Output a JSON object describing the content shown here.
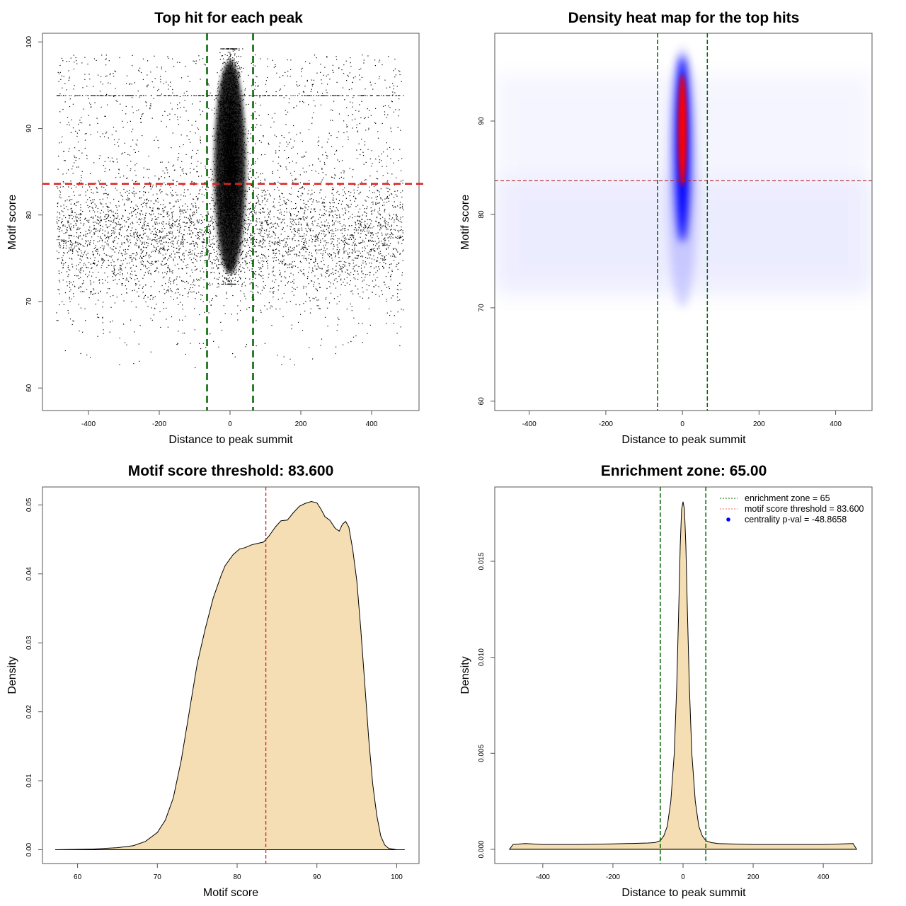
{
  "chart_data": [
    {
      "type": "scatter",
      "title": "Top hit for each peak",
      "xlabel": "Distance to peak summit",
      "ylabel": "Motif score",
      "xlim": [
        -530,
        534
      ],
      "ylim": [
        57.4,
        101
      ],
      "xticks": [
        -400,
        -200,
        0,
        200,
        400
      ],
      "yticks": [
        60,
        70,
        80,
        90,
        100
      ],
      "threshold": 83.6,
      "enrichment_zone": 65,
      "colors": {
        "points": "#000000",
        "threshold": "#dd2222",
        "zone": "#006400"
      },
      "background_points": {
        "count": 5500,
        "x_range": [
          -490,
          490
        ],
        "y_mean": 77.5,
        "y_sd": 3.6,
        "uniform_fraction": 0.3,
        "uniform_range": [
          62,
          98.5
        ]
      },
      "central_points": {
        "count": 5000,
        "x_sd": 15,
        "y_mean": 86,
        "y_sd": 5.5,
        "y_range": [
          72,
          99.2
        ]
      }
    },
    {
      "type": "heatmap",
      "title": "Density heat map for the top hits",
      "xlabel": "Distance to peak summit",
      "ylabel": "Motif score",
      "xlim": [
        -490,
        495
      ],
      "ylim": [
        59,
        99.4
      ],
      "xticks": [
        -400,
        -200,
        0,
        200,
        400
      ],
      "yticks": [
        60,
        70,
        80,
        90
      ],
      "threshold": 83.6,
      "enrichment_zone": 65,
      "hotspot": {
        "x": 0,
        "y_center": 89,
        "y_span": [
          77,
          97
        ]
      },
      "colors": {
        "high": "#ff0000",
        "mid": "#0000ff",
        "threshold": "#b22222",
        "zone": "#006400"
      }
    },
    {
      "type": "area",
      "title": "Motif score threshold: 83.600",
      "xlabel": "Motif score",
      "ylabel": "Density",
      "xlim": [
        55.6,
        102.8
      ],
      "ylim": [
        -0.002,
        0.0526
      ],
      "xticks": [
        60,
        70,
        80,
        90,
        100
      ],
      "yticks": [
        0.0,
        0.01,
        0.02,
        0.03,
        0.04,
        0.05
      ],
      "ytick_labels": [
        "0.00",
        "0.01",
        "0.02",
        "0.03",
        "0.04",
        "0.05"
      ],
      "threshold": 83.6,
      "x": [
        57.2,
        62,
        65,
        67,
        68.5,
        70,
        71,
        72,
        73,
        74,
        75,
        76,
        77,
        78,
        78.5,
        79.5,
        80.3,
        81,
        81.8,
        82.5,
        83.3,
        84,
        84.8,
        85.5,
        86.3,
        87,
        87.8,
        88.5,
        89.3,
        90,
        90.5,
        91,
        91.6,
        92.3,
        92.8,
        93.2,
        93.6,
        94,
        94.5,
        95,
        95.5,
        96,
        96.5,
        97,
        97.5,
        98,
        98.5,
        99,
        99.5,
        100,
        101
      ],
      "y": [
        0,
        0.0001,
        0.0003,
        0.0006,
        0.0012,
        0.0025,
        0.0043,
        0.0075,
        0.013,
        0.02,
        0.027,
        0.032,
        0.0365,
        0.0398,
        0.0412,
        0.0428,
        0.0436,
        0.0438,
        0.0442,
        0.0444,
        0.0446,
        0.0455,
        0.0468,
        0.0477,
        0.0478,
        0.0488,
        0.0498,
        0.0502,
        0.0505,
        0.0503,
        0.0494,
        0.0483,
        0.0478,
        0.0466,
        0.0462,
        0.0472,
        0.0476,
        0.0468,
        0.0435,
        0.039,
        0.032,
        0.024,
        0.016,
        0.0095,
        0.005,
        0.002,
        0.0007,
        0.0002,
        0.0001,
        0,
        0
      ],
      "colors": {
        "fill": "#f5deb3",
        "line": "#000000",
        "threshold": "#cc2222"
      }
    },
    {
      "type": "area",
      "title": "Enrichment zone: 65.00",
      "xlabel": "Distance to peak summit",
      "ylabel": "Density",
      "xlim": [
        -537,
        539
      ],
      "ylim": [
        -0.00074,
        0.01887
      ],
      "xticks": [
        -400,
        -200,
        0,
        200,
        400
      ],
      "yticks": [
        0.0,
        0.005,
        0.01,
        0.015
      ],
      "ytick_labels": [
        "0.000",
        "0.005",
        "0.010",
        "0.015"
      ],
      "enrichment_zone": 65,
      "x": [
        -495,
        -485,
        -450,
        -400,
        -300,
        -200,
        -100,
        -80,
        -65,
        -55,
        -45,
        -35,
        -25,
        -18,
        -12,
        -8,
        -4,
        0,
        4,
        8,
        12,
        18,
        25,
        35,
        45,
        55,
        65,
        80,
        100,
        200,
        300,
        400,
        485,
        495
      ],
      "y": [
        0,
        0.00025,
        0.0003,
        0.00025,
        0.00025,
        0.00028,
        0.00033,
        0.00035,
        0.00045,
        0.0007,
        0.0012,
        0.0025,
        0.005,
        0.0085,
        0.0128,
        0.0158,
        0.0177,
        0.0181,
        0.0177,
        0.0158,
        0.0128,
        0.0085,
        0.005,
        0.0025,
        0.0012,
        0.0007,
        0.00045,
        0.00035,
        0.0003,
        0.00025,
        0.00025,
        0.00025,
        0.0003,
        0
      ],
      "legend": {
        "position": "top-right",
        "entries": [
          {
            "label": "enrichment zone = 65",
            "color": "#006400",
            "style": "dotted"
          },
          {
            "label": "motif score threshold = 83.600",
            "color": "#ff6666",
            "style": "dotted"
          },
          {
            "label": "centrality p-val = -48.8658",
            "color": "#0000ff",
            "style": "point"
          }
        ]
      },
      "colors": {
        "fill": "#f5deb3",
        "line": "#000000",
        "zone": "#006400"
      }
    }
  ]
}
